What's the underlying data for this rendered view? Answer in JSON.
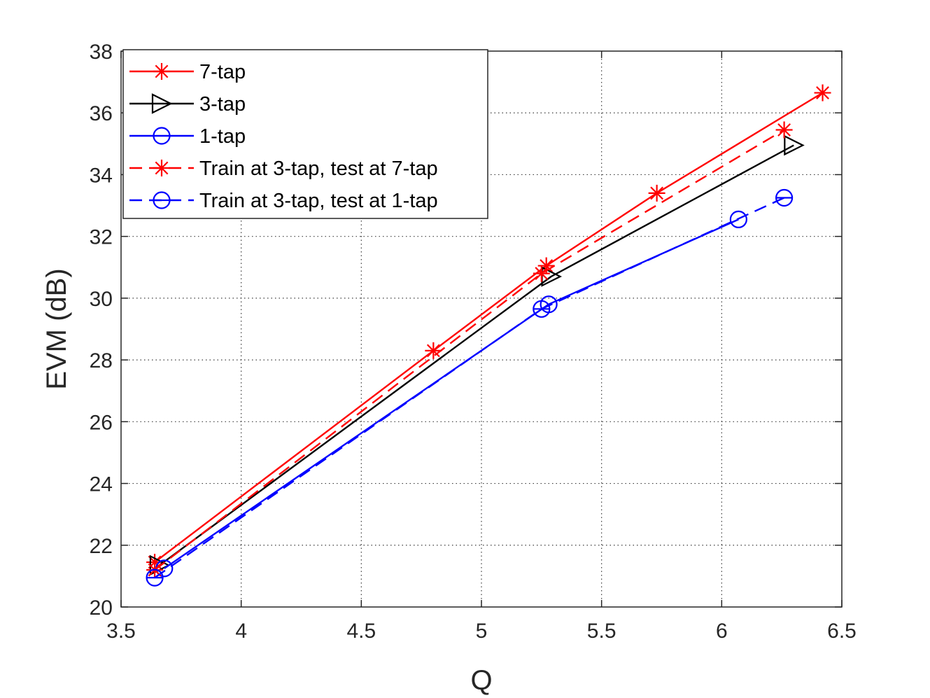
{
  "chart_data": {
    "type": "line",
    "title": "",
    "xlabel": "Q",
    "ylabel": "EVM (dB)",
    "xlim": [
      3.5,
      6.5
    ],
    "ylim": [
      20,
      38
    ],
    "xticks": [
      3.5,
      4,
      4.5,
      5,
      5.5,
      6,
      6.5
    ],
    "xtick_labels": [
      "3.5",
      "4",
      "4.5",
      "5",
      "5.5",
      "6",
      "6.5"
    ],
    "yticks": [
      20,
      22,
      24,
      26,
      28,
      30,
      32,
      34,
      36,
      38
    ],
    "ytick_labels": [
      "20",
      "22",
      "24",
      "26",
      "28",
      "30",
      "32",
      "34",
      "36",
      "38"
    ],
    "grid": true,
    "legend_position": "top-left",
    "series": [
      {
        "name": "7-tap",
        "color": "#ff0000",
        "line_style": "solid",
        "marker": "asterisk",
        "x": [
          3.64,
          4.8,
          5.27,
          5.73,
          6.42
        ],
        "y": [
          21.45,
          28.3,
          31.05,
          33.4,
          36.65
        ]
      },
      {
        "name": "3-tap",
        "color": "#000000",
        "line_style": "solid",
        "marker": "triangle-right",
        "x": [
          3.66,
          5.29,
          6.3
        ],
        "y": [
          21.35,
          30.7,
          34.95
        ]
      },
      {
        "name": "1-tap",
        "color": "#0000ff",
        "line_style": "solid",
        "marker": "circle",
        "x": [
          3.68,
          5.28,
          6.07
        ],
        "y": [
          21.25,
          29.8,
          32.55
        ]
      },
      {
        "name": "Train at 3-tap, test at 7-tap",
        "color": "#ff0000",
        "line_style": "dashed",
        "marker": "asterisk",
        "x": [
          3.64,
          5.25,
          6.26
        ],
        "y": [
          21.2,
          30.8,
          35.45
        ]
      },
      {
        "name": "Train at 3-tap, test at 1-tap",
        "color": "#0000ff",
        "line_style": "dashed",
        "marker": "circle-bar",
        "x": [
          3.64,
          5.25,
          6.26
        ],
        "y": [
          20.95,
          29.65,
          33.25
        ]
      }
    ]
  }
}
